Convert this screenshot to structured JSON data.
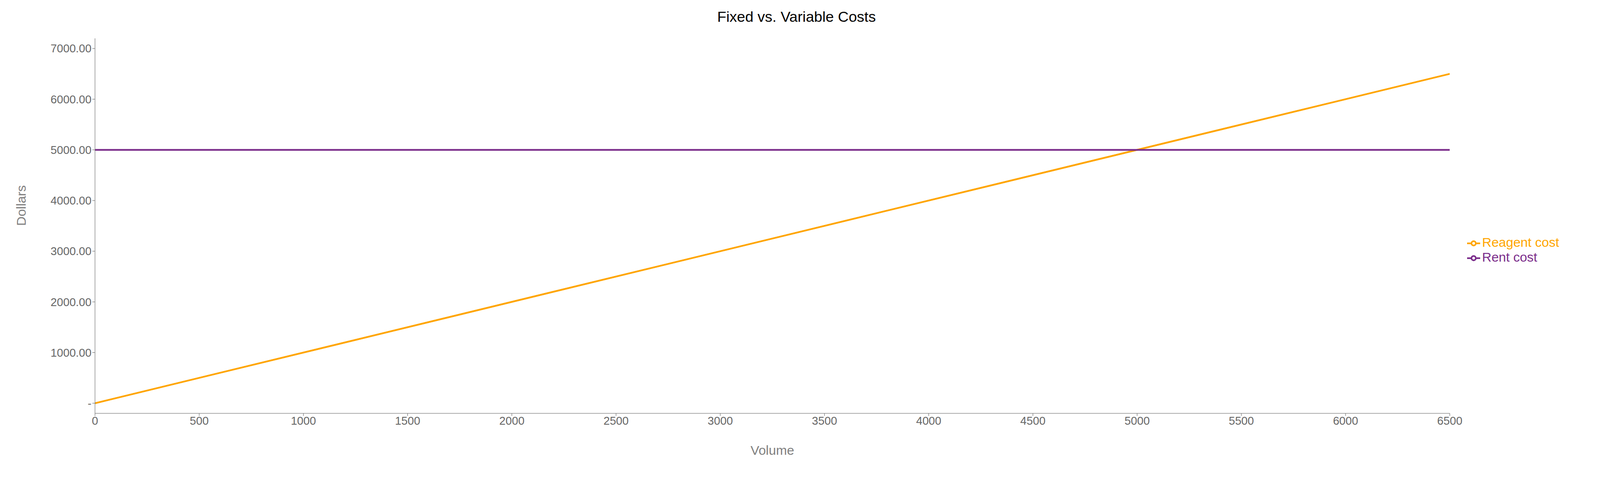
{
  "chart_data": {
    "type": "line",
    "title": "Fixed vs. Variable Costs",
    "xlabel": "Volume",
    "ylabel": "Dollars",
    "x": [
      0,
      6500
    ],
    "series": [
      {
        "name": "Reagent cost",
        "color": "#FFA500",
        "values": [
          0,
          6500
        ]
      },
      {
        "name": "Rent cost",
        "color": "#7B2D8B",
        "values": [
          5000,
          5000
        ]
      }
    ],
    "xlim": [
      0,
      6500
    ],
    "ylim": [
      -200,
      7200
    ],
    "xticks": [
      0,
      500,
      1000,
      1500,
      2000,
      2500,
      3000,
      3500,
      4000,
      4500,
      5000,
      5500,
      6000,
      6500
    ],
    "yticks": [
      {
        "value": 0,
        "label": "-"
      },
      {
        "value": 1000,
        "label": "1000.00"
      },
      {
        "value": 2000,
        "label": "2000.00"
      },
      {
        "value": 3000,
        "label": "3000.00"
      },
      {
        "value": 4000,
        "label": "4000.00"
      },
      {
        "value": 5000,
        "label": "5000.00"
      },
      {
        "value": 6000,
        "label": "6000.00"
      },
      {
        "value": 7000,
        "label": "7000.00"
      }
    ],
    "grid": false,
    "legend": "right"
  }
}
